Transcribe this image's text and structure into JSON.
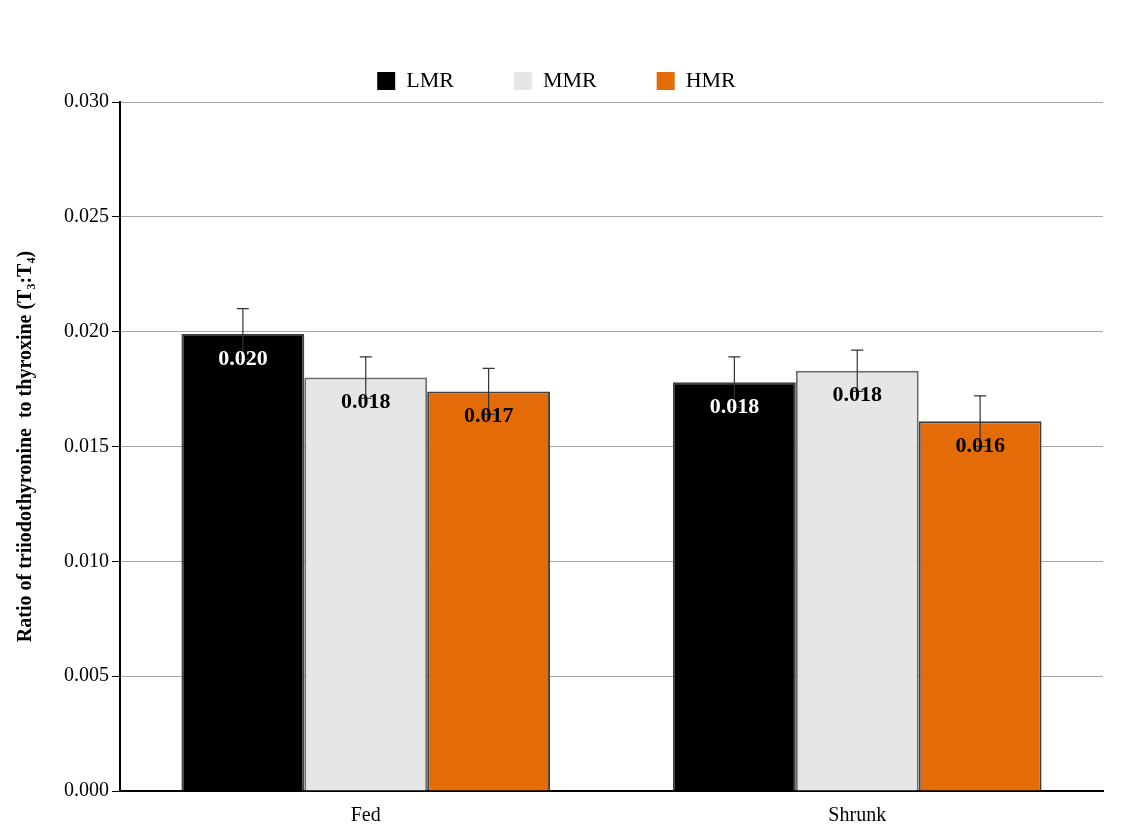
{
  "chart_data": {
    "type": "bar",
    "ylabel": "Ratio of triiodothyronine  to thyroxine (T₃:T₄)",
    "categories": [
      "Fed",
      "Shrunk"
    ],
    "series": [
      {
        "name": "LMR",
        "color": "#000000",
        "values": [
          0.0199,
          0.0178
        ],
        "errors": [
          0.0011,
          0.0011
        ],
        "value_labels": [
          "0.020",
          "0.018"
        ]
      },
      {
        "name": "MMR",
        "color": "#e6e6e6",
        "values": [
          0.018,
          0.0183
        ],
        "errors": [
          0.0009,
          0.0009
        ],
        "value_labels": [
          "0.018",
          "0.018"
        ]
      },
      {
        "name": "HMR",
        "color": "#e36c09",
        "values": [
          0.0174,
          0.0161
        ],
        "errors": [
          0.001,
          0.0011
        ],
        "value_labels": [
          "0.017",
          "0.016"
        ]
      }
    ],
    "ylim": [
      0,
      0.03
    ],
    "yticks": [
      {
        "value": 0,
        "label": "0.000"
      },
      {
        "value": 0.005,
        "label": "0.005"
      },
      {
        "value": 0.01,
        "label": "0.010"
      },
      {
        "value": 0.015,
        "label": "0.015"
      },
      {
        "value": 0.02,
        "label": "0.020"
      },
      {
        "value": 0.025,
        "label": "0.025"
      },
      {
        "value": 0.03,
        "label": "0.030"
      }
    ],
    "grid": "y",
    "legend": "top"
  }
}
